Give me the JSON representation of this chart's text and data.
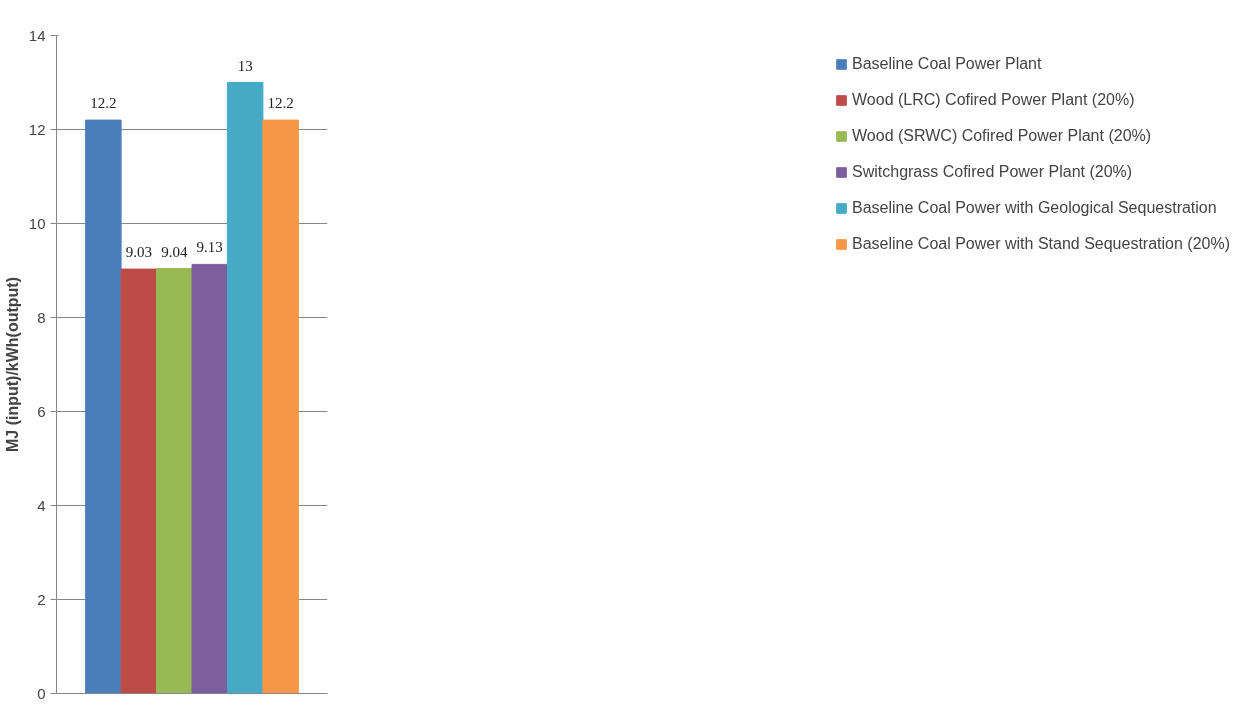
{
  "chart_data": {
    "type": "bar",
    "ylabel": "MJ (input)/kWh(output)",
    "categories": [
      null
    ],
    "series": [
      {
        "name": "Baseline Coal Power Plant",
        "color": "#4a7ebb",
        "values": [
          12.2
        ]
      },
      {
        "name": "Wood (LRC) Cofired Power Plant (20%)",
        "color": "#be4b48",
        "values": [
          9.03
        ]
      },
      {
        "name": "Wood (SRWC) Cofired Power Plant (20%)",
        "color": "#98b954",
        "values": [
          9.04
        ]
      },
      {
        "name": "Switchgrass Cofired Power Plant (20%)",
        "color": "#7d5fa0",
        "values": [
          9.13
        ]
      },
      {
        "name": "Baseline Coal Power with Geological Sequestration",
        "color": "#46aac5",
        "values": [
          13
        ]
      },
      {
        "name": "Baseline Coal Power with Stand Sequestration (20%)",
        "color": "#f79646",
        "values": [
          12.2
        ]
      }
    ],
    "ylim": [
      0,
      14
    ],
    "yticks": [
      0,
      2,
      4,
      6,
      8,
      10,
      12,
      14
    ],
    "grid": "y",
    "legend": "right",
    "data_labels": true,
    "tick_labels": "y"
  }
}
